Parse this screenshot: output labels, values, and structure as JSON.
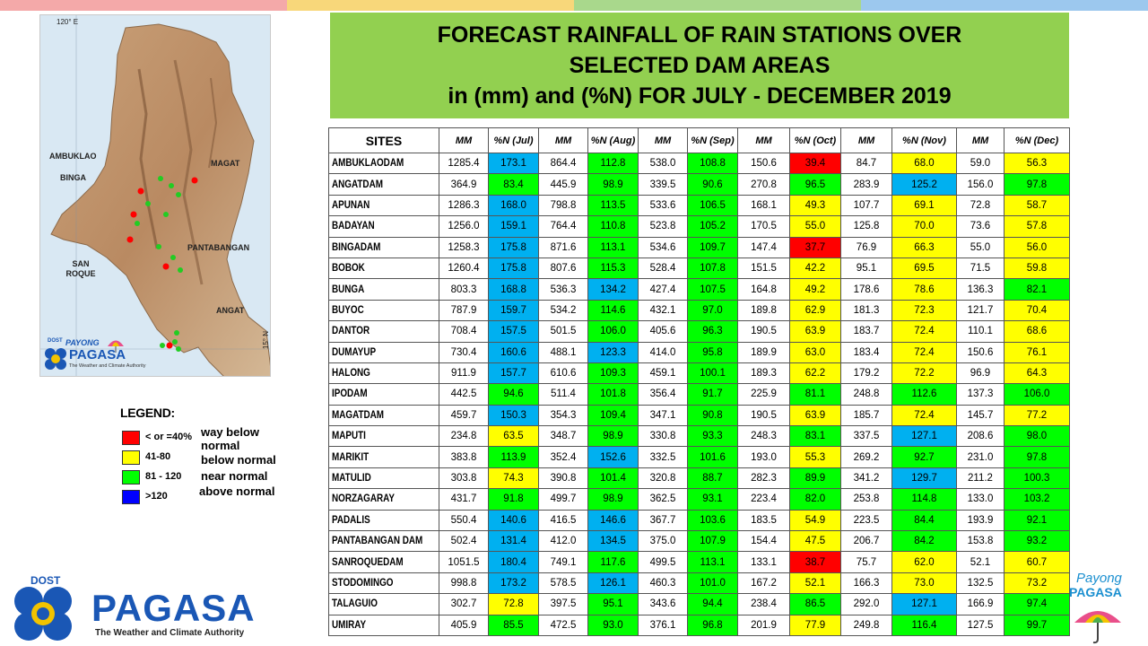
{
  "title": {
    "line1": "FORECAST RAINFALL OF RAIN STATIONS OVER",
    "line2": "SELECTED DAM AREAS",
    "line3": "in (mm) and (%N) FOR JULY - DECEMBER 2019"
  },
  "map": {
    "longitude_label": "120° E",
    "latitude_label": "15° N",
    "labels": [
      "AMBUKLAO",
      "BINGA",
      "MAGAT",
      "PANTABANGAN",
      "SAN ROQUE",
      "ANGAT"
    ],
    "mini_logo": {
      "dost": "DOST",
      "payong": "PAYONG",
      "pagasa": "PAGASA",
      "tagline": "The Weather and Climate Authority"
    }
  },
  "legend": {
    "title": "LEGEND:",
    "items": [
      {
        "range": "< or =40%",
        "color": "#ff0000",
        "desc": "way below normal"
      },
      {
        "range": "41-80",
        "color": "#ffff00",
        "desc": "below normal"
      },
      {
        "range": "81 - 120",
        "color": "#00ff00",
        "desc": "near normal"
      },
      {
        "range": ">120",
        "color": "#0000ff",
        "desc": "above normal"
      }
    ]
  },
  "logo": {
    "dost": "DOST",
    "name": "PAGASA",
    "tagline": "The Weather and Climate Authority"
  },
  "logo_right": {
    "line1": "Payong",
    "line2": "PAGASA"
  },
  "table": {
    "headers": [
      "SITES",
      "MM",
      "%N (Jul)",
      "MM",
      "%N (Aug)",
      "MM",
      "%N (Sep)",
      "MM",
      "%N (Oct)",
      "MM",
      "%N (Nov)",
      "MM",
      "%N (Dec)"
    ],
    "rows": [
      {
        "site": "AMBUKLAODAM",
        "values": [
          "1285.4",
          "173.1",
          "864.4",
          "112.8",
          "538.0",
          "108.8",
          "150.6",
          "39.4",
          "84.7",
          "68.0",
          "59.0",
          "56.3"
        ],
        "colors": [
          "blue",
          "green",
          "green",
          "red",
          "yellow",
          "yellow"
        ]
      },
      {
        "site": "ANGATDAM",
        "values": [
          "364.9",
          "83.4",
          "445.9",
          "98.9",
          "339.5",
          "90.6",
          "270.8",
          "96.5",
          "283.9",
          "125.2",
          "156.0",
          "97.8"
        ],
        "colors": [
          "green",
          "green",
          "green",
          "green",
          "blue",
          "green"
        ]
      },
      {
        "site": "APUNAN",
        "values": [
          "1286.3",
          "168.0",
          "798.8",
          "113.5",
          "533.6",
          "106.5",
          "168.1",
          "49.3",
          "107.7",
          "69.1",
          "72.8",
          "58.7"
        ],
        "colors": [
          "blue",
          "green",
          "green",
          "yellow",
          "yellow",
          "yellow"
        ]
      },
      {
        "site": "BADAYAN",
        "values": [
          "1256.0",
          "159.1",
          "764.4",
          "110.8",
          "523.8",
          "105.2",
          "170.5",
          "55.0",
          "125.8",
          "70.0",
          "73.6",
          "57.8"
        ],
        "colors": [
          "blue",
          "green",
          "green",
          "yellow",
          "yellow",
          "yellow"
        ]
      },
      {
        "site": "BINGADAM",
        "values": [
          "1258.3",
          "175.8",
          "871.6",
          "113.1",
          "534.6",
          "109.7",
          "147.4",
          "37.7",
          "76.9",
          "66.3",
          "55.0",
          "56.0"
        ],
        "colors": [
          "blue",
          "green",
          "green",
          "red",
          "yellow",
          "yellow"
        ]
      },
      {
        "site": "BOBOK",
        "values": [
          "1260.4",
          "175.8",
          "807.6",
          "115.3",
          "528.4",
          "107.8",
          "151.5",
          "42.2",
          "95.1",
          "69.5",
          "71.5",
          "59.8"
        ],
        "colors": [
          "blue",
          "green",
          "green",
          "yellow",
          "yellow",
          "yellow"
        ]
      },
      {
        "site": "BUNGA",
        "values": [
          "803.3",
          "168.8",
          "536.3",
          "134.2",
          "427.4",
          "107.5",
          "164.8",
          "49.2",
          "178.6",
          "78.6",
          "136.3",
          "82.1"
        ],
        "colors": [
          "blue",
          "blue",
          "green",
          "yellow",
          "yellow",
          "green"
        ]
      },
      {
        "site": "BUYOC",
        "values": [
          "787.9",
          "159.7",
          "534.2",
          "114.6",
          "432.1",
          "97.0",
          "189.8",
          "62.9",
          "181.3",
          "72.3",
          "121.7",
          "70.4"
        ],
        "colors": [
          "blue",
          "green",
          "green",
          "yellow",
          "yellow",
          "yellow"
        ]
      },
      {
        "site": "DANTOR",
        "values": [
          "708.4",
          "157.5",
          "501.5",
          "106.0",
          "405.6",
          "96.3",
          "190.5",
          "63.9",
          "183.7",
          "72.4",
          "110.1",
          "68.6"
        ],
        "colors": [
          "blue",
          "green",
          "green",
          "yellow",
          "yellow",
          "yellow"
        ]
      },
      {
        "site": "DUMAYUP",
        "values": [
          "730.4",
          "160.6",
          "488.1",
          "123.3",
          "414.0",
          "95.8",
          "189.9",
          "63.0",
          "183.4",
          "72.4",
          "150.6",
          "76.1"
        ],
        "colors": [
          "blue",
          "blue",
          "green",
          "yellow",
          "yellow",
          "yellow"
        ]
      },
      {
        "site": "HALONG",
        "values": [
          "911.9",
          "157.7",
          "610.6",
          "109.3",
          "459.1",
          "100.1",
          "189.3",
          "62.2",
          "179.2",
          "72.2",
          "96.9",
          "64.3"
        ],
        "colors": [
          "blue",
          "green",
          "green",
          "yellow",
          "yellow",
          "yellow"
        ]
      },
      {
        "site": "IPODAM",
        "values": [
          "442.5",
          "94.6",
          "511.4",
          "101.8",
          "356.4",
          "91.7",
          "225.9",
          "81.1",
          "248.8",
          "112.6",
          "137.3",
          "106.0"
        ],
        "colors": [
          "green",
          "green",
          "green",
          "green",
          "green",
          "green"
        ]
      },
      {
        "site": "MAGATDAM",
        "values": [
          "459.7",
          "150.3",
          "354.3",
          "109.4",
          "347.1",
          "90.8",
          "190.5",
          "63.9",
          "185.7",
          "72.4",
          "145.7",
          "77.2"
        ],
        "colors": [
          "blue",
          "green",
          "green",
          "yellow",
          "yellow",
          "yellow"
        ]
      },
      {
        "site": "MAPUTI",
        "values": [
          "234.8",
          "63.5",
          "348.7",
          "98.9",
          "330.8",
          "93.3",
          "248.3",
          "83.1",
          "337.5",
          "127.1",
          "208.6",
          "98.0"
        ],
        "colors": [
          "yellow",
          "green",
          "green",
          "green",
          "blue",
          "green"
        ]
      },
      {
        "site": "MARIKIT",
        "values": [
          "383.8",
          "113.9",
          "352.4",
          "152.6",
          "332.5",
          "101.6",
          "193.0",
          "55.3",
          "269.2",
          "92.7",
          "231.0",
          "97.8"
        ],
        "colors": [
          "green",
          "blue",
          "green",
          "yellow",
          "green",
          "green"
        ]
      },
      {
        "site": "MATULID",
        "values": [
          "303.8",
          "74.3",
          "390.8",
          "101.4",
          "320.8",
          "88.7",
          "282.3",
          "89.9",
          "341.2",
          "129.7",
          "211.2",
          "100.3"
        ],
        "colors": [
          "yellow",
          "green",
          "green",
          "green",
          "blue",
          "green"
        ]
      },
      {
        "site": "NORZAGARAY",
        "values": [
          "431.7",
          "91.8",
          "499.7",
          "98.9",
          "362.5",
          "93.1",
          "223.4",
          "82.0",
          "253.8",
          "114.8",
          "133.0",
          "103.2"
        ],
        "colors": [
          "green",
          "green",
          "green",
          "green",
          "green",
          "green"
        ]
      },
      {
        "site": "PADALIS",
        "values": [
          "550.4",
          "140.6",
          "416.5",
          "146.6",
          "367.7",
          "103.6",
          "183.5",
          "54.9",
          "223.5",
          "84.4",
          "193.9",
          "92.1"
        ],
        "colors": [
          "blue",
          "blue",
          "green",
          "yellow",
          "green",
          "green"
        ]
      },
      {
        "site": "PANTABANGAN DAM",
        "values": [
          "502.4",
          "131.4",
          "412.0",
          "134.5",
          "375.0",
          "107.9",
          "154.4",
          "47.5",
          "206.7",
          "84.2",
          "153.8",
          "93.2"
        ],
        "colors": [
          "blue",
          "blue",
          "green",
          "yellow",
          "green",
          "green"
        ]
      },
      {
        "site": "SANROQUEDAM",
        "values": [
          "1051.5",
          "180.4",
          "749.1",
          "117.6",
          "499.5",
          "113.1",
          "133.1",
          "38.7",
          "75.7",
          "62.0",
          "52.1",
          "60.7"
        ],
        "colors": [
          "blue",
          "green",
          "green",
          "red",
          "yellow",
          "yellow"
        ]
      },
      {
        "site": "STODOMINGO",
        "values": [
          "998.8",
          "173.2",
          "578.5",
          "126.1",
          "460.3",
          "101.0",
          "167.2",
          "52.1",
          "166.3",
          "73.0",
          "132.5",
          "73.2"
        ],
        "colors": [
          "blue",
          "blue",
          "green",
          "yellow",
          "yellow",
          "yellow"
        ]
      },
      {
        "site": "TALAGUIO",
        "values": [
          "302.7",
          "72.8",
          "397.5",
          "95.1",
          "343.6",
          "94.4",
          "238.4",
          "86.5",
          "292.0",
          "127.1",
          "166.9",
          "97.4"
        ],
        "colors": [
          "yellow",
          "green",
          "green",
          "green",
          "blue",
          "green"
        ]
      },
      {
        "site": "UMIRAY",
        "values": [
          "405.9",
          "85.5",
          "472.5",
          "93.0",
          "376.1",
          "96.8",
          "201.9",
          "77.9",
          "249.8",
          "116.4",
          "127.5",
          "99.7"
        ],
        "colors": [
          "green",
          "green",
          "green",
          "yellow",
          "green",
          "green"
        ]
      }
    ]
  }
}
